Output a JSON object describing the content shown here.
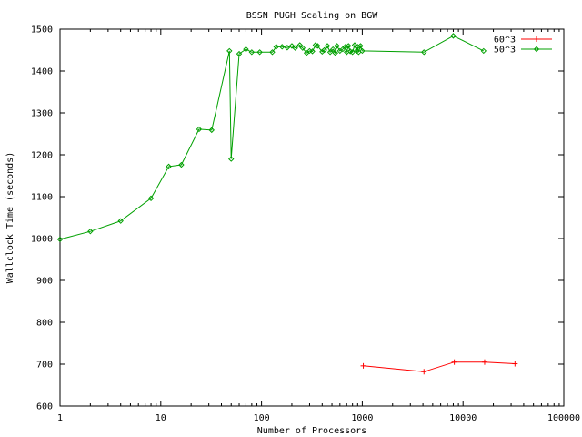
{
  "chart_data": {
    "type": "line",
    "title": "BSSN PUGH Scaling on BGW",
    "xlabel": "Number of Processors",
    "ylabel": "Wallclock Time (seconds)",
    "xscale": "log",
    "xlim": [
      1,
      100000
    ],
    "ylim": [
      600,
      1500
    ],
    "x_ticks": [
      1,
      10,
      100,
      1000,
      10000,
      100000
    ],
    "x_tick_labels": [
      "1",
      "10",
      "100",
      "1000",
      "10000",
      "100000"
    ],
    "y_ticks": [
      600,
      700,
      800,
      900,
      1000,
      1100,
      1200,
      1300,
      1400,
      1500
    ],
    "y_tick_labels": [
      "600",
      "700",
      "800",
      "900",
      "1000",
      "1100",
      "1200",
      "1300",
      "1400",
      "1500"
    ],
    "grid": false,
    "legend_position": "top-right",
    "series": [
      {
        "name": "60^3",
        "color": "#ff0000",
        "marker": "plus",
        "x": [
          1024,
          4096,
          8192,
          16384,
          32768
        ],
        "y": [
          696,
          682,
          705,
          705,
          701
        ]
      },
      {
        "name": "50^3",
        "color": "#00a000",
        "marker": "diamond",
        "x": [
          1,
          2,
          4,
          8,
          12,
          16,
          24,
          32,
          48,
          50,
          60,
          70,
          80,
          96,
          128,
          140,
          160,
          180,
          200,
          216,
          240,
          256,
          280,
          300,
          320,
          343,
          360,
          400,
          420,
          450,
          480,
          512,
          540,
          560,
          600,
          640,
          680,
          700,
          729,
          760,
          800,
          840,
          880,
          900,
          920,
          960,
          1000,
          4096,
          8000,
          16000
        ],
        "y": [
          998,
          1017,
          1042,
          1096,
          1172,
          1176,
          1261,
          1259,
          1448,
          1190,
          1441,
          1452,
          1445,
          1445,
          1445,
          1458,
          1458,
          1456,
          1460,
          1455,
          1462,
          1455,
          1443,
          1448,
          1447,
          1462,
          1460,
          1446,
          1450,
          1460,
          1445,
          1452,
          1443,
          1460,
          1448,
          1452,
          1458,
          1445,
          1460,
          1447,
          1445,
          1462,
          1448,
          1458,
          1445,
          1460,
          1448,
          1445,
          1484,
          1448
        ]
      }
    ]
  }
}
